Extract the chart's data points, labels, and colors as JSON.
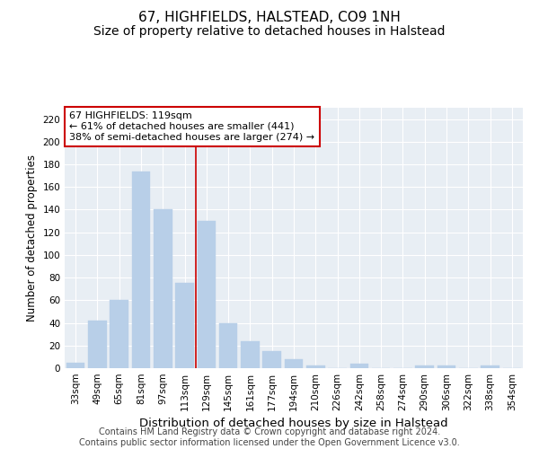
{
  "title": "67, HIGHFIELDS, HALSTEAD, CO9 1NH",
  "subtitle": "Size of property relative to detached houses in Halstead",
  "xlabel": "Distribution of detached houses by size in Halstead",
  "ylabel": "Number of detached properties",
  "categories": [
    "33sqm",
    "49sqm",
    "65sqm",
    "81sqm",
    "97sqm",
    "113sqm",
    "129sqm",
    "145sqm",
    "161sqm",
    "177sqm",
    "194sqm",
    "210sqm",
    "226sqm",
    "242sqm",
    "258sqm",
    "274sqm",
    "290sqm",
    "306sqm",
    "322sqm",
    "338sqm",
    "354sqm"
  ],
  "values": [
    5,
    42,
    60,
    174,
    140,
    75,
    130,
    40,
    24,
    15,
    8,
    2,
    0,
    4,
    0,
    0,
    2,
    2,
    0,
    2,
    0
  ],
  "bar_color": "#b8cfe8",
  "bar_edgecolor": "#b8cfe8",
  "vline_color": "#cc0000",
  "vline_pos": 5.5,
  "annotation_text": "67 HIGHFIELDS: 119sqm\n← 61% of detached houses are smaller (441)\n38% of semi-detached houses are larger (274) →",
  "annotation_box_color": "#ffffff",
  "annotation_box_edgecolor": "#cc0000",
  "ylim": [
    0,
    230
  ],
  "yticks": [
    0,
    20,
    40,
    60,
    80,
    100,
    120,
    140,
    160,
    180,
    200,
    220
  ],
  "plot_bg_color": "#e8eef4",
  "grid_color": "#ffffff",
  "footer": "Contains HM Land Registry data © Crown copyright and database right 2024.\nContains public sector information licensed under the Open Government Licence v3.0.",
  "title_fontsize": 11,
  "subtitle_fontsize": 10,
  "xlabel_fontsize": 9.5,
  "ylabel_fontsize": 8.5,
  "tick_fontsize": 7.5,
  "annotation_fontsize": 8,
  "footer_fontsize": 7
}
